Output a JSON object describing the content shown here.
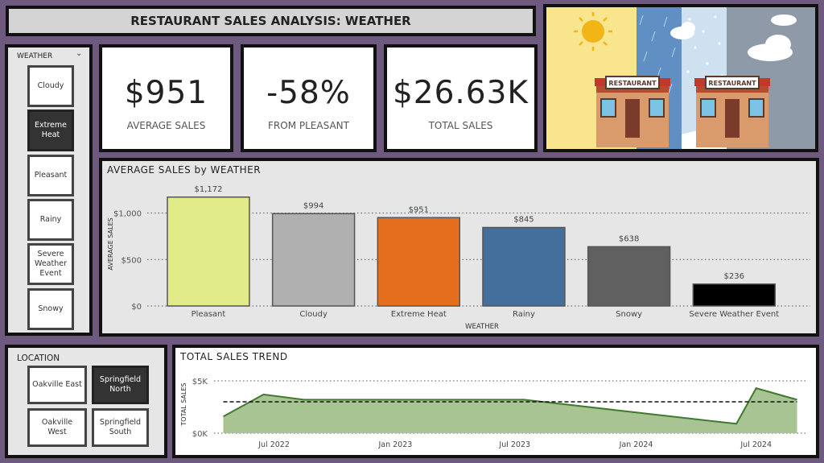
{
  "title": "RESTAURANT SALES ANALYSIS: WEATHER",
  "weather_slicer": {
    "title": "WEATHER",
    "items": [
      {
        "label": "Cloudy",
        "selected": false
      },
      {
        "label": "Extreme Heat",
        "selected": true
      },
      {
        "label": "Pleasant",
        "selected": false
      },
      {
        "label": "Rainy",
        "selected": false
      },
      {
        "label": "Severe Weather Event",
        "selected": false
      },
      {
        "label": "Snowy",
        "selected": false
      }
    ]
  },
  "location_slicer": {
    "title": "LOCATION",
    "items": [
      {
        "label": "Oakville East",
        "selected": false
      },
      {
        "label": "Springfield North",
        "selected": true
      },
      {
        "label": "Oakville West",
        "selected": false
      },
      {
        "label": "Springfield South",
        "selected": false
      }
    ]
  },
  "kpis": [
    {
      "value": "$951",
      "label": "AVERAGE SALES"
    },
    {
      "value": "-58%",
      "label": "FROM PLEASANT"
    },
    {
      "value": "$26.63K",
      "label": "TOTAL SALES"
    }
  ],
  "hero": {
    "sign_left": "RESTAURANT",
    "sign_right": "RESTAURANT"
  },
  "chart_data": [
    {
      "type": "bar",
      "title": "AVERAGE SALES by WEATHER",
      "xlabel": "WEATHER",
      "ylabel": "AVERAGE SALES",
      "categories": [
        "Pleasant",
        "Cloudy",
        "Extreme Heat",
        "Rainy",
        "Snowy",
        "Severe Weather Event"
      ],
      "values": [
        1172,
        994,
        951,
        845,
        638,
        236
      ],
      "data_labels": [
        "$1,172",
        "$994",
        "$951",
        "$845",
        "$638",
        "$236"
      ],
      "colors": [
        "#e2eb8a",
        "#b0b0b0",
        "#e56e1e",
        "#446e9c",
        "#606060",
        "#000000"
      ],
      "yticks": [
        0,
        500,
        1000
      ],
      "ytick_labels": [
        "$0",
        "$500",
        "$1,000"
      ],
      "ylim": [
        0,
        1300
      ],
      "grid": true
    },
    {
      "type": "area",
      "title": "TOTAL SALES TREND",
      "ylabel": "TOTAL SALES",
      "x": [
        "2022-04-15",
        "2022-06-15",
        "2022-08-15",
        "2023-07-15",
        "2024-06-01",
        "2024-07-01",
        "2024-09-01"
      ],
      "values": [
        1600,
        3700,
        3200,
        3200,
        900,
        4300,
        3200
      ],
      "average": 3000,
      "xticks": [
        "Jul 2022",
        "Jan 2023",
        "Jul 2023",
        "Jan 2024",
        "Jul 2024"
      ],
      "xtick_dates": [
        "2022-07-01",
        "2023-01-01",
        "2023-07-01",
        "2024-01-01",
        "2024-07-01"
      ],
      "yticks": [
        0,
        5000
      ],
      "ytick_labels": [
        "$0K",
        "$5K"
      ],
      "ylim": [
        0,
        5000
      ],
      "xlim": [
        "2022-04-01",
        "2024-09-15"
      ],
      "fill_color": "#a8c493",
      "line_color": "#3f7a2e",
      "grid": true
    }
  ]
}
